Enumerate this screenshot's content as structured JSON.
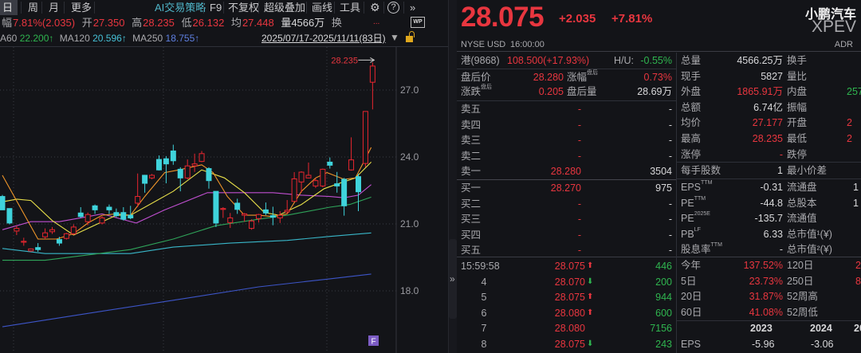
{
  "toolbar": {
    "tabs": [
      "日",
      "周",
      "月",
      "更多"
    ],
    "ai": "AI交易策略",
    "f9": "F9",
    "adjust": "不复权",
    "overlay": "超级叠加",
    "draw": "画线",
    "tools": "工具",
    "more": "»"
  },
  "quote_line": {
    "change_label": "幅",
    "change": "7.81%(2.035)",
    "open_label": "开",
    "open": "27.350",
    "high_label": "高",
    "high": "28.235",
    "low_label": "低",
    "low": "26.132",
    "avg_label": "均",
    "avg": "27.448",
    "vol": "量4566万",
    "turnover_label": "换",
    "dots": "...",
    "wp": "WP"
  },
  "ma_legend": {
    "ma60_label": "A60",
    "ma60": "22.200↑",
    "ma120_label": "MA120",
    "ma120": "20.596↑",
    "ma250_label": "MA250",
    "ma250": "18.755↑",
    "range": "2025/07/17-2025/11/11(83日)"
  },
  "chart_data": {
    "type": "candlestick",
    "y_ticks": [
      "27.0",
      "24.0",
      "21.0",
      "18.0"
    ],
    "y_tick_values": [
      27,
      24,
      21,
      18
    ],
    "ylim": [
      15.2,
      29.2
    ],
    "grid": true,
    "high_marker": "28.235",
    "badge": "F",
    "colors": {
      "up": "#e8262f",
      "down": "#3fd3db",
      "ma5": "#f0962a",
      "ma10": "#e8e04a",
      "ma20": "#c04fd0",
      "ma60": "#2fa55a",
      "ma120": "#39b7c9",
      "ma250": "#3d55c8"
    },
    "candles_ohlc": [
      [
        22.23,
        22.3,
        21.63,
        21.63
      ],
      [
        21.69,
        21.69,
        20.98,
        21.04
      ],
      [
        20.68,
        20.92,
        20.5,
        20.8
      ],
      [
        20.18,
        20.38,
        20.02,
        20.22
      ],
      [
        19.79,
        19.9,
        19.75,
        19.88
      ],
      [
        19.94,
        20.14,
        19.75,
        19.85
      ],
      [
        20.42,
        20.8,
        20.32,
        20.6
      ],
      [
        20.65,
        20.86,
        20.55,
        20.74
      ],
      [
        20.3,
        20.42,
        20.02,
        20.14
      ],
      [
        20.35,
        20.6,
        20.3,
        20.56
      ],
      [
        20.56,
        20.98,
        20.5,
        20.86
      ],
      [
        21.49,
        21.75,
        21.27,
        21.33
      ],
      [
        21.1,
        21.51,
        20.94,
        21.42
      ],
      [
        21.81,
        21.87,
        21.45,
        21.63
      ],
      [
        21.04,
        21.35,
        20.98,
        21.27
      ],
      [
        21.75,
        21.87,
        21.45,
        21.63
      ],
      [
        21.51,
        21.69,
        21.3,
        21.37
      ],
      [
        21.51,
        21.75,
        21.15,
        21.21
      ],
      [
        21.39,
        21.81,
        21.21,
        21.27
      ],
      [
        21.93,
        23.26,
        21.75,
        22.23
      ],
      [
        23.18,
        23.2,
        22.4,
        22.82
      ],
      [
        23.06,
        23.24,
        23.0,
        23.18
      ],
      [
        23.89,
        24.07,
        23.39,
        23.42
      ],
      [
        23.92,
        24.04,
        22.82,
        23.69
      ],
      [
        24.27,
        24.55,
        23.65,
        23.83
      ],
      [
        23.45,
        23.54,
        22.46,
        23.06
      ],
      [
        23.06,
        23.89,
        23.0,
        23.6
      ],
      [
        23.6,
        24.15,
        23.33,
        23.69
      ],
      [
        23.8,
        24.27,
        23.77,
        24.15
      ],
      [
        23.48,
        23.54,
        22.58,
        22.94
      ],
      [
        22.46,
        22.46,
        20.86,
        21.04
      ],
      [
        21.65,
        21.75,
        21.27,
        21.69
      ],
      [
        21.06,
        21.49,
        20.82,
        21.27
      ],
      [
        21.93,
        22.13,
        21.45,
        21.65
      ],
      [
        21.39,
        21.49,
        21.1,
        21.45
      ],
      [
        20.8,
        21.21,
        20.74,
        21.13
      ],
      [
        21.24,
        21.45,
        21.06,
        21.42
      ],
      [
        21.63,
        21.96,
        21.39,
        21.49
      ],
      [
        21.37,
        21.77,
        20.94,
        21.3
      ],
      [
        21.27,
        21.57,
        21.04,
        21.39
      ],
      [
        21.54,
        22.07,
        21.45,
        21.61
      ],
      [
        22.01,
        23.32,
        21.99,
        23.02
      ],
      [
        22.88,
        23.36,
        22.4,
        23.32
      ],
      [
        23.06,
        23.75,
        23.04,
        23.18
      ],
      [
        22.7,
        23.06,
        22.61,
        22.94
      ],
      [
        22.7,
        23.48,
        22.64,
        23.45
      ],
      [
        23.77,
        23.98,
        23.48,
        23.63
      ],
      [
        22.8,
        23.33,
        22.4,
        22.7
      ],
      [
        23.0,
        23.06,
        21.37,
        21.81
      ],
      [
        23.42,
        24.88,
        23.39,
        23.87
      ],
      [
        23.12,
        23.24,
        21.57,
        22.44
      ],
      [
        23.71,
        26.04,
        23.54,
        26.04
      ],
      [
        27.35,
        28.235,
        26.132,
        28.075
      ]
    ],
    "ma_series": {
      "ma5": [
        [
          0,
          23.18
        ],
        [
          5,
          20.32
        ],
        [
          7.6,
          20.32
        ],
        [
          10,
          20.56
        ],
        [
          12,
          21.04
        ],
        [
          14,
          21.39
        ],
        [
          16,
          21.45
        ],
        [
          18,
          21.39
        ],
        [
          20,
          22.23
        ],
        [
          22.8,
          23.3
        ],
        [
          24.8,
          23.42
        ],
        [
          28,
          23.65
        ],
        [
          29.6,
          23.3
        ],
        [
          31.6,
          22.23
        ],
        [
          34,
          21.39
        ],
        [
          36,
          21.39
        ],
        [
          38,
          21.33
        ],
        [
          40,
          21.45
        ],
        [
          42,
          22.46
        ],
        [
          44,
          23.06
        ],
        [
          45.6,
          23.3
        ],
        [
          48,
          23.0
        ],
        [
          49.6,
          23.06
        ],
        [
          51.8,
          24.43
        ]
      ],
      "ma10": [
        [
          0,
          21.99
        ],
        [
          2,
          22.11
        ],
        [
          4,
          22.05
        ],
        [
          7,
          21.15
        ],
        [
          10,
          20.5
        ],
        [
          16,
          21.39
        ],
        [
          18,
          21.39
        ],
        [
          24,
          22.46
        ],
        [
          28,
          23.42
        ],
        [
          31.2,
          23.06
        ],
        [
          34,
          22.4
        ],
        [
          36.8,
          21.51
        ],
        [
          38.8,
          21.39
        ],
        [
          42,
          21.87
        ],
        [
          45.2,
          22.58
        ],
        [
          46.8,
          22.76
        ],
        [
          49.6,
          23.06
        ],
        [
          51.8,
          23.77
        ]
      ],
      "ma20": [
        [
          0,
          20.74
        ],
        [
          4,
          21.1
        ],
        [
          8,
          21.1
        ],
        [
          12,
          21.33
        ],
        [
          14,
          21.45
        ],
        [
          18.8,
          21.04
        ],
        [
          22.8,
          21.63
        ],
        [
          28.8,
          22.4
        ],
        [
          38,
          22.4
        ],
        [
          42,
          22.29
        ],
        [
          46,
          22.23
        ],
        [
          48,
          22.17
        ],
        [
          50,
          22.29
        ],
        [
          51.8,
          22.76
        ]
      ],
      "ma60": [
        [
          0,
          19.37
        ],
        [
          6,
          19.37
        ],
        [
          12,
          19.61
        ],
        [
          18,
          19.85
        ],
        [
          24,
          20.32
        ],
        [
          30,
          20.92
        ],
        [
          36,
          21.21
        ],
        [
          40,
          21.39
        ],
        [
          46,
          21.75
        ],
        [
          48.8,
          21.87
        ],
        [
          51.8,
          22.2
        ]
      ],
      "ma120": [
        [
          0,
          19.9
        ],
        [
          6,
          19.67
        ],
        [
          18,
          19.67
        ],
        [
          24,
          19.96
        ],
        [
          32,
          20.14
        ],
        [
          40,
          20.26
        ],
        [
          46,
          20.44
        ],
        [
          51.8,
          20.596
        ]
      ],
      "ma250": [
        [
          0,
          16.39
        ],
        [
          12,
          16.99
        ],
        [
          24,
          17.58
        ],
        [
          36,
          18.18
        ],
        [
          46,
          18.54
        ],
        [
          51.8,
          18.755
        ]
      ]
    }
  },
  "header": {
    "price": "28.075",
    "change": "+2.035",
    "pct": "+7.81%",
    "name": "小鹏汽车",
    "ticker": "XPEV",
    "exchange": "NYSE",
    "currency": "USD",
    "time": "16:00:00",
    "adr": "ADR"
  },
  "hk": {
    "label": "港(9868)",
    "value": "108.500(+17.93%)",
    "hu_label": "H/U:",
    "hu": "-0.55%"
  },
  "after": {
    "price_label": "盘后价",
    "price": "28.280",
    "pct_label": "涨幅",
    "pct_sup": "盘后",
    "pct": "0.73%",
    "chg_label": "涨跌",
    "chg_sup": "盘后",
    "chg": "0.205",
    "vol_label": "盘后量",
    "vol": "28.69万"
  },
  "asks": [
    {
      "label": "卖五",
      "price": "-",
      "vol": "-"
    },
    {
      "label": "卖四",
      "price": "-",
      "vol": "-"
    },
    {
      "label": "卖三",
      "price": "-",
      "vol": "-"
    },
    {
      "label": "卖二",
      "price": "-",
      "vol": "-"
    },
    {
      "label": "卖一",
      "price": "28.280",
      "vol": "3504"
    }
  ],
  "bids": [
    {
      "label": "买一",
      "price": "28.270",
      "vol": "975"
    },
    {
      "label": "买二",
      "price": "-",
      "vol": "-"
    },
    {
      "label": "买三",
      "price": "-",
      "vol": "-"
    },
    {
      "label": "买四",
      "price": "-",
      "vol": "-"
    },
    {
      "label": "买五",
      "price": "-",
      "vol": "-"
    }
  ],
  "ticks": [
    {
      "time": "15:59:58",
      "price": "28.075",
      "dir": "up",
      "vol": "446"
    },
    {
      "time": "4",
      "price": "28.070",
      "dir": "down",
      "vol": "200"
    },
    {
      "time": "5",
      "price": "28.075",
      "dir": "up",
      "vol": "944"
    },
    {
      "time": "6",
      "price": "28.080",
      "dir": "up",
      "vol": "600"
    },
    {
      "time": "7",
      "price": "28.080",
      "dir": "",
      "vol": "7156"
    },
    {
      "time": "8",
      "price": "28.075",
      "dir": "down",
      "vol": "243"
    }
  ],
  "stats": [
    {
      "l1": "总量",
      "v1": "4566.25万",
      "c1": "wh",
      "l2": "换手",
      "v2": "",
      "c2": "wh"
    },
    {
      "l1": "现手",
      "v1": "5827",
      "c1": "wh",
      "l2": "量比",
      "v2": "",
      "c2": "wh"
    },
    {
      "l1": "外盘",
      "v1": "1865.91万",
      "c1": "red",
      "l2": "内盘",
      "v2": "257",
      "c2": "green"
    },
    {
      "l1": "总额",
      "v1": "6.74亿",
      "c1": "wh",
      "l2": "振幅",
      "v2": "",
      "c2": "wh"
    },
    {
      "l1": "均价",
      "v1": "27.177",
      "c1": "red",
      "l2": "开盘",
      "v2": "2",
      "c2": "red"
    },
    {
      "l1": "最高",
      "v1": "28.235",
      "c1": "red",
      "l2": "最低",
      "v2": "2",
      "c2": "red"
    },
    {
      "l1": "涨停",
      "v1": "-",
      "c1": "red",
      "l2": "跌停",
      "v2": "",
      "c2": "wh"
    }
  ],
  "lot": {
    "l1": "每手股数",
    "v1": "1",
    "l2": "最小价差"
  },
  "fund": [
    {
      "l1": "EPS",
      "sup": "TTM",
      "v1": "-0.31",
      "l2": "流通盘",
      "v2": "1"
    },
    {
      "l1": "PE",
      "sup": "TTM",
      "v1": "-44.8",
      "l2": "总股本",
      "v2": "1"
    },
    {
      "l1": "PE",
      "sup": "2025E",
      "v1": "-135.7",
      "l2": "流通值",
      "v2": ""
    },
    {
      "l1": "PB",
      "sup": "LF",
      "v1": "6.33",
      "l2": "总市值¹(¥)",
      "v2": ""
    },
    {
      "l1": "股息率",
      "sup": "TTM",
      "v1": "-",
      "l2": "总市值²(¥)",
      "v2": ""
    }
  ],
  "perf": [
    {
      "l1": "今年",
      "v1": "137.52%",
      "l2": "120日",
      "v2": "2"
    },
    {
      "l1": "5日",
      "v1": "23.73%",
      "l2": "250日",
      "v2": "8"
    },
    {
      "l1": "20日",
      "v1": "31.87%",
      "l2": "52周高",
      "v2": ""
    },
    {
      "l1": "60日",
      "v1": "41.08%",
      "l2": "52周低",
      "v2": ""
    }
  ],
  "years": {
    "y1": "2023",
    "y2": "2024",
    "y3": "20",
    "eps_label": "EPS",
    "eps1": "-5.96",
    "eps2": "-3.06"
  },
  "splitter": "»"
}
